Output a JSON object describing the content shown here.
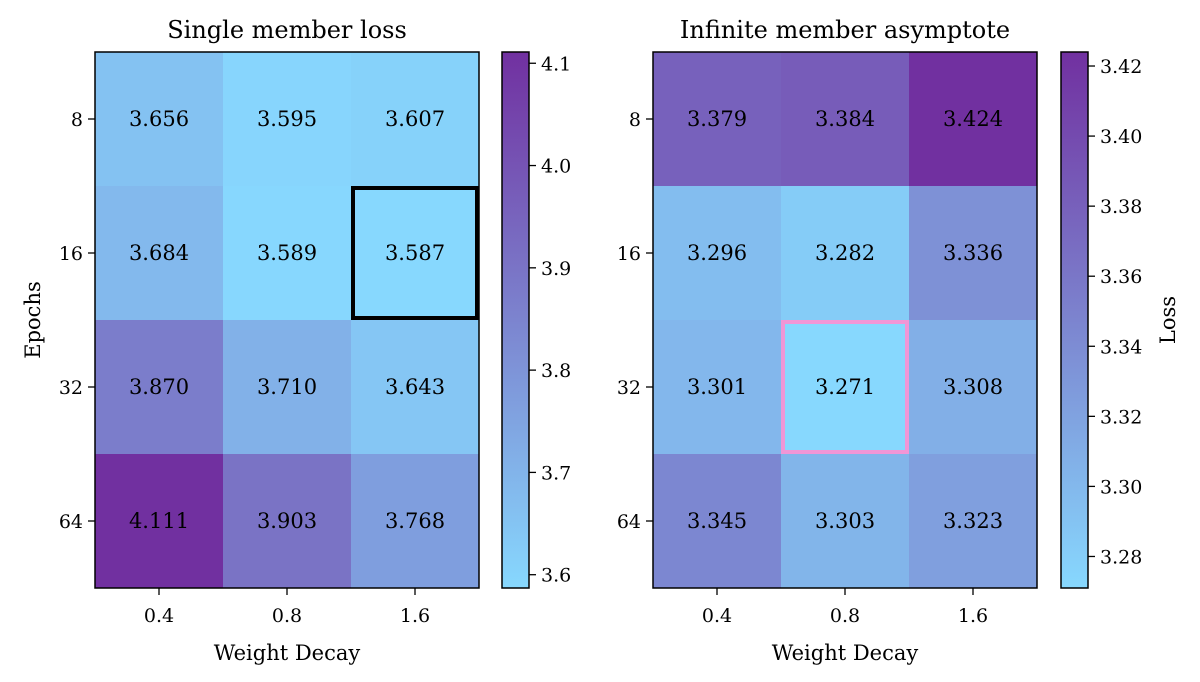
{
  "chart_data": [
    {
      "type": "heatmap",
      "title": "Single member loss",
      "xlabel": "Weight Decay",
      "ylabel": "Epochs",
      "x_categories": [
        "0.4",
        "0.8",
        "1.6"
      ],
      "y_categories": [
        "8",
        "16",
        "32",
        "64"
      ],
      "values": [
        [
          3.656,
          3.595,
          3.607
        ],
        [
          3.684,
          3.589,
          3.587
        ],
        [
          3.87,
          3.71,
          3.643
        ],
        [
          4.111,
          3.903,
          3.768
        ]
      ],
      "value_labels": [
        [
          "3.656",
          "3.595",
          "3.607"
        ],
        [
          "3.684",
          "3.589",
          "3.587"
        ],
        [
          "3.870",
          "3.710",
          "3.643"
        ],
        [
          "4.111",
          "3.903",
          "3.768"
        ]
      ],
      "highlight": {
        "row": 1,
        "col": 2,
        "color": "#000000"
      },
      "colorbar": {
        "range": [
          3.587,
          4.111
        ],
        "ticks": [
          "3.6",
          "3.7",
          "3.8",
          "3.9",
          "4.0",
          "4.1"
        ],
        "tick_values": [
          3.6,
          3.7,
          3.8,
          3.9,
          4.0,
          4.1
        ],
        "label": ""
      },
      "colormap": [
        "#87d8fe",
        "#7130a0"
      ]
    },
    {
      "type": "heatmap",
      "title": "Infinite member asymptote",
      "xlabel": "Weight Decay",
      "ylabel": "",
      "x_categories": [
        "0.4",
        "0.8",
        "1.6"
      ],
      "y_categories": [
        "8",
        "16",
        "32",
        "64"
      ],
      "values": [
        [
          3.379,
          3.384,
          3.424
        ],
        [
          3.296,
          3.282,
          3.336
        ],
        [
          3.301,
          3.271,
          3.308
        ],
        [
          3.345,
          3.303,
          3.323
        ]
      ],
      "value_labels": [
        [
          "3.379",
          "3.384",
          "3.424"
        ],
        [
          "3.296",
          "3.282",
          "3.336"
        ],
        [
          "3.301",
          "3.271",
          "3.308"
        ],
        [
          "3.345",
          "3.303",
          "3.323"
        ]
      ],
      "highlight": {
        "row": 2,
        "col": 1,
        "color": "#f096d6"
      },
      "colorbar": {
        "range": [
          3.271,
          3.424
        ],
        "ticks": [
          "3.28",
          "3.30",
          "3.32",
          "3.34",
          "3.36",
          "3.38",
          "3.40",
          "3.42"
        ],
        "tick_values": [
          3.28,
          3.3,
          3.32,
          3.34,
          3.36,
          3.38,
          3.4,
          3.42
        ],
        "label": "Loss"
      },
      "colormap": [
        "#87d8fe",
        "#7130a0"
      ]
    }
  ]
}
